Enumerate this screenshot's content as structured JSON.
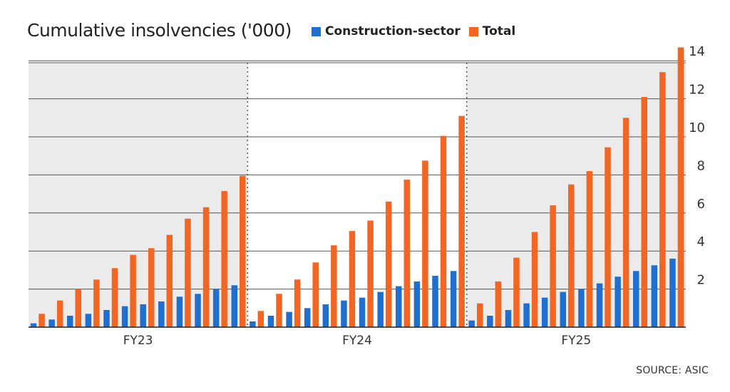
{
  "title": "Cumulative insolvencies ('000)",
  "source": "SOURCE: ASIC",
  "colors": {
    "construction": "#1f6fd1",
    "total": "#f26522",
    "shade": "#ebebeb",
    "grid": "#444444"
  },
  "chart_data": {
    "type": "bar",
    "title": "Cumulative insolvencies ('000)",
    "xlabel": "",
    "ylabel": "",
    "ylim": [
      0,
      15
    ],
    "yticks": [
      2,
      4,
      6,
      8,
      10,
      12,
      14
    ],
    "y_axis_position": "right",
    "grid": true,
    "legend": "top",
    "groups": [
      {
        "label": "FY23",
        "shaded": true,
        "months": 12
      },
      {
        "label": "FY24",
        "shaded": false,
        "months": 12
      },
      {
        "label": "FY25",
        "shaded": true,
        "months": 12
      }
    ],
    "series": [
      {
        "name": "Construction-sector",
        "values": [
          0.2,
          0.4,
          0.6,
          0.7,
          0.9,
          1.1,
          1.2,
          1.35,
          1.6,
          1.75,
          2.0,
          2.2,
          0.3,
          0.6,
          0.8,
          1.0,
          1.2,
          1.4,
          1.55,
          1.85,
          2.15,
          2.4,
          2.7,
          2.95,
          0.35,
          0.6,
          0.9,
          1.25,
          1.55,
          1.85,
          2.0,
          2.3,
          2.65,
          2.95,
          3.25,
          3.6
        ]
      },
      {
        "name": "Total",
        "values": [
          0.7,
          1.4,
          2.0,
          2.5,
          3.1,
          3.8,
          4.15,
          4.85,
          5.7,
          6.3,
          7.15,
          7.95,
          0.85,
          1.75,
          2.5,
          3.4,
          4.3,
          5.05,
          5.6,
          6.6,
          7.75,
          8.75,
          10.05,
          11.1,
          1.25,
          2.4,
          3.65,
          5.0,
          6.4,
          7.5,
          8.2,
          9.45,
          11.0,
          12.1,
          13.4,
          14.7
        ]
      }
    ]
  }
}
